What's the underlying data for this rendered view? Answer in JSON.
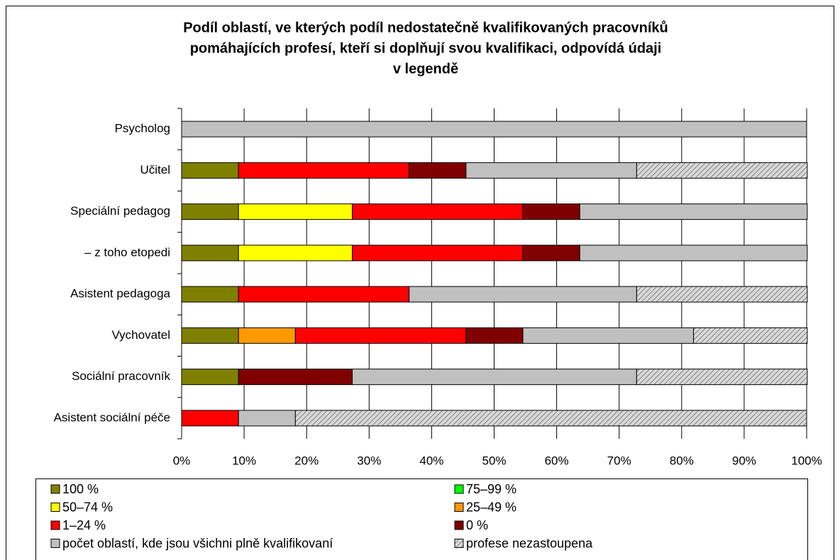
{
  "chart_data": {
    "type": "stacked_barh",
    "title": [
      "Podíl oblastí, ve kterých podíl nedostatečně kvalifikovaných pracovníků",
      "pomáhajících profesí, kteří si doplňují svou kvalifikaci, odpovídá údaji",
      "v legendě"
    ],
    "categories": [
      "Psycholog",
      "Učitel",
      "Speciální pedagog",
      "–  z toho etopedi",
      "Asistent pedagoga",
      "Vychovatel",
      "Sociální pracovník",
      "Asistent sociální péče"
    ],
    "series": [
      {
        "name": "100 %",
        "color": "#808000",
        "values": [
          0,
          9.1,
          9.1,
          9.1,
          9.1,
          9.1,
          9.1,
          0
        ]
      },
      {
        "name": "75–99 %",
        "color": "#00ff00",
        "values": [
          0,
          0,
          0,
          0,
          0,
          0,
          0,
          0
        ]
      },
      {
        "name": "50–74 %",
        "color": "#ffff00",
        "values": [
          0,
          0,
          18.2,
          18.2,
          0,
          0,
          0,
          0
        ]
      },
      {
        "name": "25–49 %",
        "color": "#ff9900",
        "values": [
          0,
          0,
          0,
          0,
          0,
          9.1,
          0,
          0
        ]
      },
      {
        "name": "1–24 %",
        "color": "#ff0000",
        "values": [
          0,
          27.3,
          27.3,
          27.3,
          27.3,
          27.3,
          0,
          9.1
        ]
      },
      {
        "name": "0 %",
        "color": "#800000",
        "values": [
          0,
          9.1,
          9.1,
          9.1,
          0,
          9.1,
          18.2,
          0
        ]
      },
      {
        "name": "počet oblastí, kde jsou všichni plně kvalifikovaní",
        "color": "#c0c0c0",
        "values": [
          100,
          27.3,
          36.4,
          36.4,
          36.4,
          27.3,
          45.5,
          9.1
        ]
      },
      {
        "name": "profese nezastoupena",
        "color": "#c0c0c0",
        "pattern": "hatch",
        "values": [
          0,
          27.3,
          0,
          0,
          27.3,
          18.2,
          27.3,
          81.8
        ]
      }
    ],
    "xlim": [
      0,
      100
    ],
    "xticks": [
      {
        "value": 0,
        "label": "0%"
      },
      {
        "value": 10,
        "label": "10%"
      },
      {
        "value": 20,
        "label": "20%"
      },
      {
        "value": 30,
        "label": "30%"
      },
      {
        "value": 40,
        "label": "40%"
      },
      {
        "value": 50,
        "label": "50%"
      },
      {
        "value": 60,
        "label": "60%"
      },
      {
        "value": 70,
        "label": "70%"
      },
      {
        "value": 80,
        "label": "80%"
      },
      {
        "value": 90,
        "label": "90%"
      },
      {
        "value": 100,
        "label": "100%"
      }
    ],
    "grid": true,
    "legend": "bottom"
  }
}
